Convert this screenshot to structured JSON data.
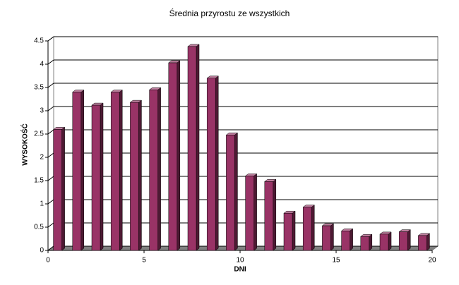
{
  "chart_data": {
    "type": "bar3d",
    "title": "Średnia przyrostu ze wszystkich",
    "x_label": "DNI",
    "y_label": "WYSOKOŚĆ",
    "x": [
      0.5,
      1.5,
      2.5,
      3.5,
      4.5,
      5.5,
      6.5,
      7.5,
      8.5,
      9.5,
      10.5,
      11.5,
      12.5,
      13.5,
      14.5,
      15.5,
      16.5,
      17.5,
      18.5,
      19.5
    ],
    "values": [
      2.6,
      3.4,
      3.12,
      3.4,
      3.18,
      3.45,
      4.03,
      4.38,
      3.7,
      2.48,
      1.6,
      1.48,
      0.8,
      0.93,
      0.53,
      0.42,
      0.3,
      0.35,
      0.4,
      0.32
    ],
    "color": "#993366",
    "xlim": [
      0,
      20
    ],
    "xticks": [
      0,
      5,
      10,
      15,
      20
    ],
    "ylim": [
      0,
      4.5
    ],
    "yticks": [
      0,
      0.5,
      1,
      1.5,
      2,
      2.5,
      3,
      3.5,
      4,
      4.5
    ],
    "grid": true
  }
}
